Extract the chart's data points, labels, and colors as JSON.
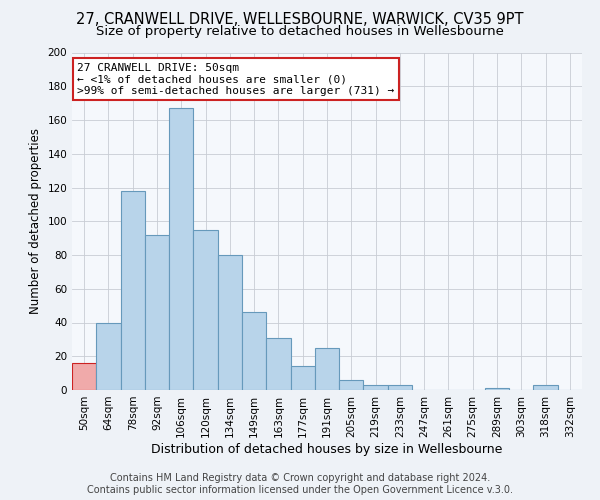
{
  "title": "27, CRANWELL DRIVE, WELLESBOURNE, WARWICK, CV35 9PT",
  "subtitle": "Size of property relative to detached houses in Wellesbourne",
  "xlabel": "Distribution of detached houses by size in Wellesbourne",
  "ylabel": "Number of detached properties",
  "bar_labels": [
    "50sqm",
    "64sqm",
    "78sqm",
    "92sqm",
    "106sqm",
    "120sqm",
    "134sqm",
    "149sqm",
    "163sqm",
    "177sqm",
    "191sqm",
    "205sqm",
    "219sqm",
    "233sqm",
    "247sqm",
    "261sqm",
    "275sqm",
    "289sqm",
    "303sqm",
    "318sqm",
    "332sqm"
  ],
  "bar_values": [
    16,
    40,
    118,
    92,
    167,
    95,
    80,
    46,
    31,
    14,
    25,
    6,
    3,
    3,
    0,
    0,
    0,
    1,
    0,
    3,
    0
  ],
  "bar_color": "#b8d4ea",
  "bar_edge_color": "#6699bb",
  "highlight_bar_index": 0,
  "highlight_bar_color": "#f0aaaa",
  "highlight_bar_edge_color": "#cc2222",
  "ylim": [
    0,
    200
  ],
  "yticks": [
    0,
    20,
    40,
    60,
    80,
    100,
    120,
    140,
    160,
    180,
    200
  ],
  "annotation_title": "27 CRANWELL DRIVE: 50sqm",
  "annotation_line1": "← <1% of detached houses are smaller (0)",
  "annotation_line2": ">99% of semi-detached houses are larger (731) →",
  "annotation_box_color": "#ffffff",
  "annotation_box_edge_color": "#cc2222",
  "footer_line1": "Contains HM Land Registry data © Crown copyright and database right 2024.",
  "footer_line2": "Contains public sector information licensed under the Open Government Licence v.3.0.",
  "background_color": "#eef2f7",
  "plot_background_color": "#f5f8fc",
  "grid_color": "#c8ccd4",
  "title_fontsize": 10.5,
  "subtitle_fontsize": 9.5,
  "xlabel_fontsize": 9,
  "ylabel_fontsize": 8.5,
  "tick_fontsize": 7.5,
  "footer_fontsize": 7,
  "ann_fontsize": 8
}
